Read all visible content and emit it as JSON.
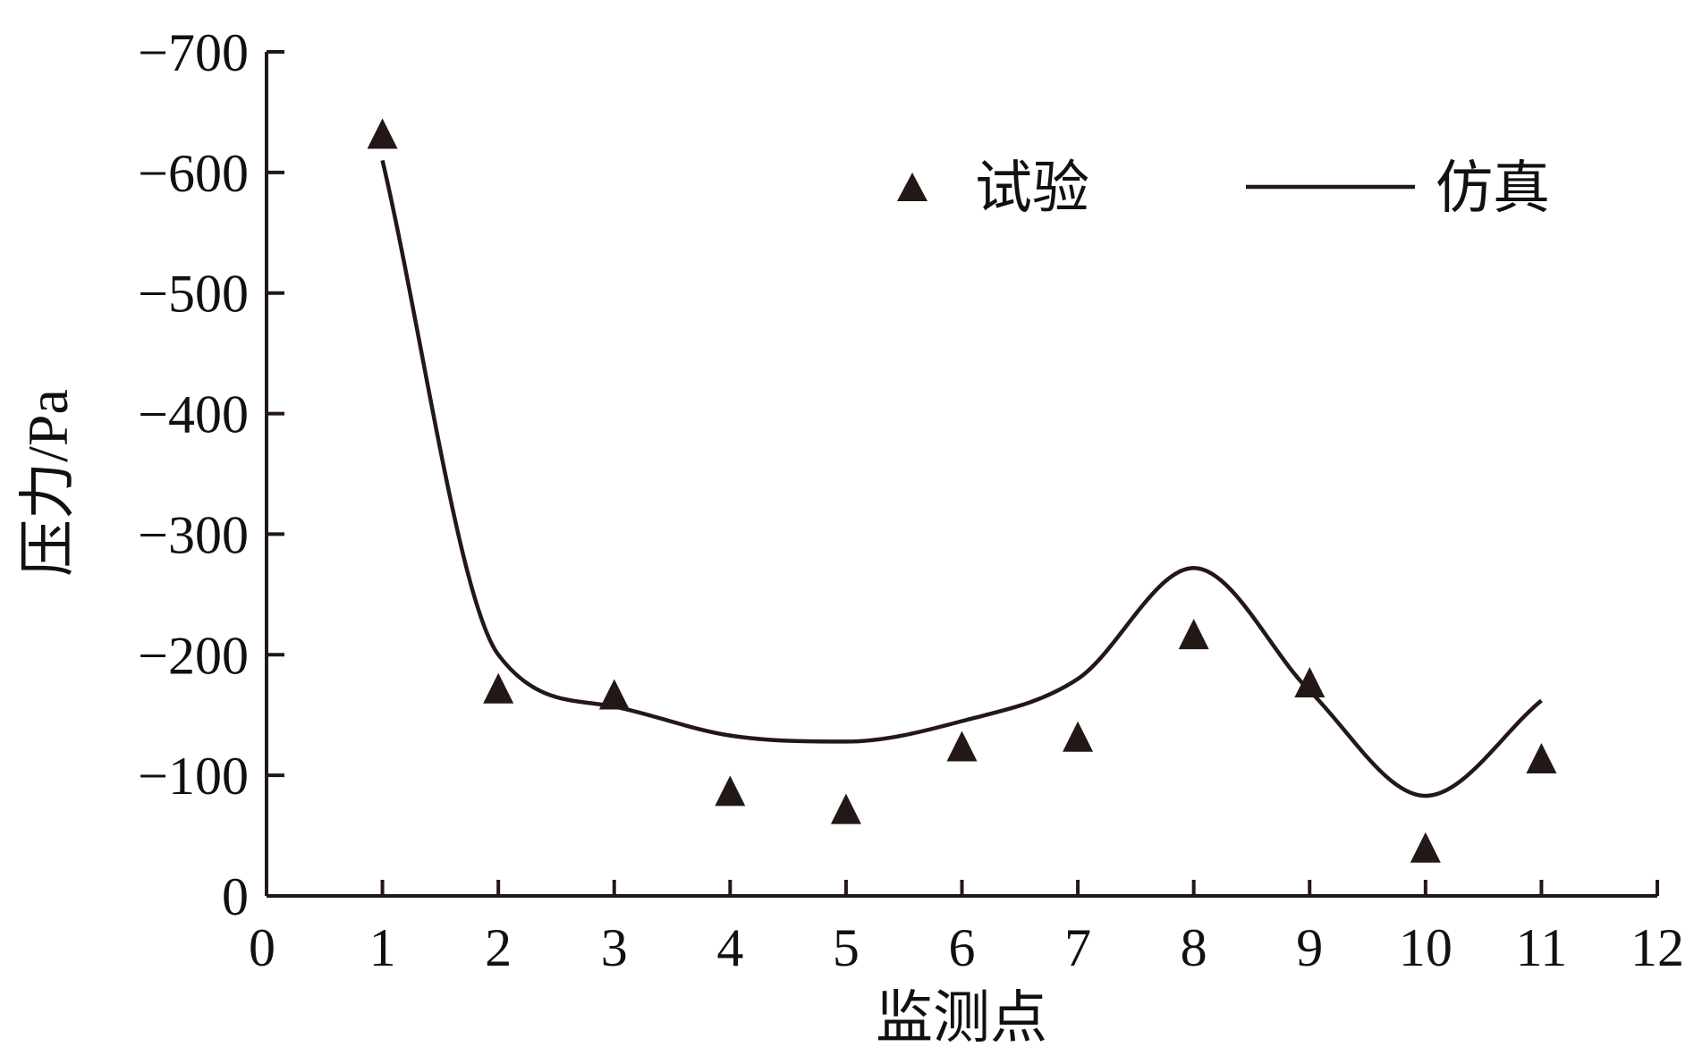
{
  "chart_data": {
    "type": "line",
    "xlabel": "监测点",
    "ylabel": "压力/Pa",
    "xlim": [
      0,
      12
    ],
    "ylim": [
      0,
      -700
    ],
    "x_ticks": [
      0,
      1,
      2,
      3,
      4,
      5,
      6,
      7,
      8,
      9,
      10,
      11,
      12
    ],
    "y_ticks": [
      0,
      -100,
      -200,
      -300,
      -400,
      -500,
      -600,
      -700
    ],
    "y_tick_labels": [
      "0",
      "−100",
      "−200",
      "−300",
      "−400",
      "−500",
      "−600",
      "−700"
    ],
    "y_axis_inverted": true,
    "grid": false,
    "legend_position": "top-right",
    "series": [
      {
        "name": "试验",
        "kind": "scatter",
        "marker": "triangle",
        "color": "#231815",
        "x": [
          1,
          2,
          3,
          4,
          5,
          6,
          7,
          8,
          9,
          10,
          11
        ],
        "y": [
          -630,
          -170,
          -165,
          -85,
          -70,
          -122,
          -130,
          -215,
          -175,
          -38,
          -112
        ]
      },
      {
        "name": "仿真",
        "kind": "line",
        "color": "#231815",
        "x": [
          1,
          2,
          3,
          4,
          5,
          6,
          7,
          8,
          9,
          10,
          11
        ],
        "y": [
          -610,
          -200,
          -157,
          -133,
          -128,
          -145,
          -180,
          -272,
          -170,
          -83,
          -162
        ]
      }
    ]
  }
}
